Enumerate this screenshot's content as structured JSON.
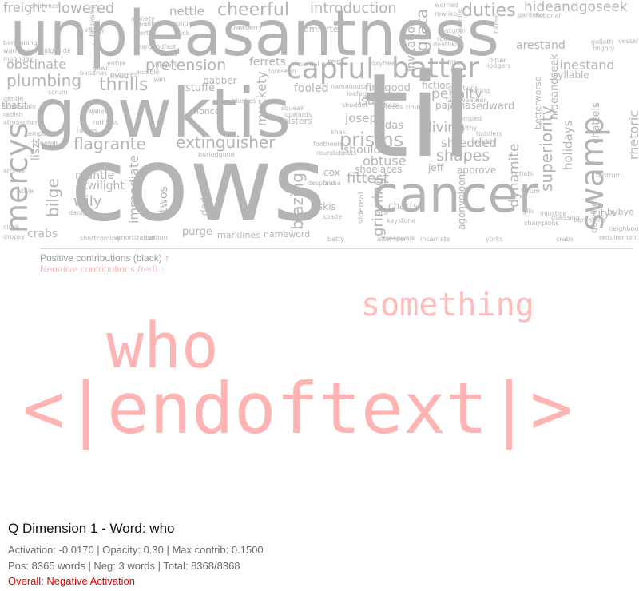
{
  "positive_words": [
    "cows",
    "til",
    "unpleasantness",
    "gowktis",
    "cancer",
    "capful",
    "batter",
    "swamp",
    "mercys",
    "flagrante",
    "extinguisher",
    "prisms",
    "cheerful",
    "introduction",
    "duties",
    "hideandgoseek",
    "lowered",
    "freight",
    "nettle",
    "pretension",
    "ferrets",
    "obstinate",
    "plumbing",
    "thrills",
    "fooled",
    "finegood",
    "isare",
    "penalty",
    "linestand",
    "syllable",
    "arestand",
    "superiority",
    "dynamite",
    "holidays",
    "chattels",
    "rhetoric",
    "joseph",
    "shouldnt",
    "judas",
    "diving",
    "shredded",
    "shapes",
    "obtuse",
    "fittest",
    "shoelaces",
    "jeff",
    "approve",
    "bilge",
    "mantle",
    "twilight",
    "wily",
    "immediate",
    "twos",
    "dodgy",
    "purge",
    "marklines",
    "nameword",
    "blazing",
    "grinning",
    "skis",
    "charts",
    "crabs",
    "agonygloom",
    "devilhell",
    "citys",
    "bybye",
    "muckety",
    "stuffe",
    "babber",
    "nonce",
    "misters",
    "comforter",
    "fiction",
    "pajamas",
    "edward",
    "liszt",
    "thatit",
    "grata",
    "invitation",
    "rec",
    "cox",
    "sidereal",
    "hideandseek",
    "betterworse",
    "tuck",
    "spanish",
    "fertile",
    "politic",
    "strawberry",
    "autumn",
    "roadline",
    "deathkill",
    "worried",
    "rowlike",
    "gardens",
    "yosemite",
    "tiamat",
    "fictional",
    "kangaroo",
    "fellowship",
    "shortcoming",
    "amortization",
    "carbon",
    "afternoon",
    "yorks",
    "crabs",
    "requirements",
    "tantrum",
    "neighbourhood",
    "borderline",
    "guessing",
    "gifs",
    "champions",
    "injustice",
    "forum",
    "outlets",
    "fauna",
    "despond",
    "freefall",
    "ruthless",
    "wallet",
    "damp",
    "arrows",
    "clock",
    "dropsy",
    "zilla",
    "keystone",
    "incarnate",
    "sleepwalk",
    "batty",
    "spade",
    "footheels",
    "roundabouts",
    "burledgone",
    "khaki",
    "upwards",
    "squeak",
    "foreseen",
    "impartial",
    "blushes",
    "betters",
    "timbers",
    "faireweather",
    "shamped",
    "healthy",
    "toddlers",
    "mighty",
    "lodgers",
    "flitter",
    "vessel",
    "blighty",
    "goliath",
    "fitter",
    "kakeem",
    "namanouse",
    "loafers",
    "shudder",
    "steeds",
    "foxyfree",
    "voting",
    "questions",
    "thrust",
    "pygmies",
    "gown",
    "audible",
    "hardandfast",
    "athle",
    "scrum",
    "gentle",
    "scottsdale",
    "radish",
    "atmosphere",
    "rattles",
    "tempora",
    "entire",
    "converted",
    "bananas",
    "anxiety",
    "stingers",
    "coats",
    "yan",
    "vanity",
    "embridgeside",
    "shimmer",
    "bargaining",
    "warren",
    "moonday",
    "aivene",
    "dismissal",
    "leases",
    "glyptic",
    "pained",
    "ringey",
    "scale",
    "tunas",
    "perish",
    "headless"
  ],
  "legend": {
    "positive": "Positive contributions (black) ↑",
    "negative": "Negative contributions (red) ↓"
  },
  "negative_words": [
    "<|endoftext|>",
    "who",
    "something"
  ],
  "info": {
    "title": "Q Dimension 1 - Word: who",
    "activation_line": "Activation: -0.0170 | Opacity: 0.30 | Max contrib: 0.1500",
    "counts_line": "Pos: 8365 words | Neg: 3 words | Total: 8368/8368",
    "overall": "Overall: Negative Activation"
  },
  "colors": {
    "positive_word": "#b4b4b4",
    "negative_word": "#ffb3b3",
    "overall_text": "#e00000"
  }
}
